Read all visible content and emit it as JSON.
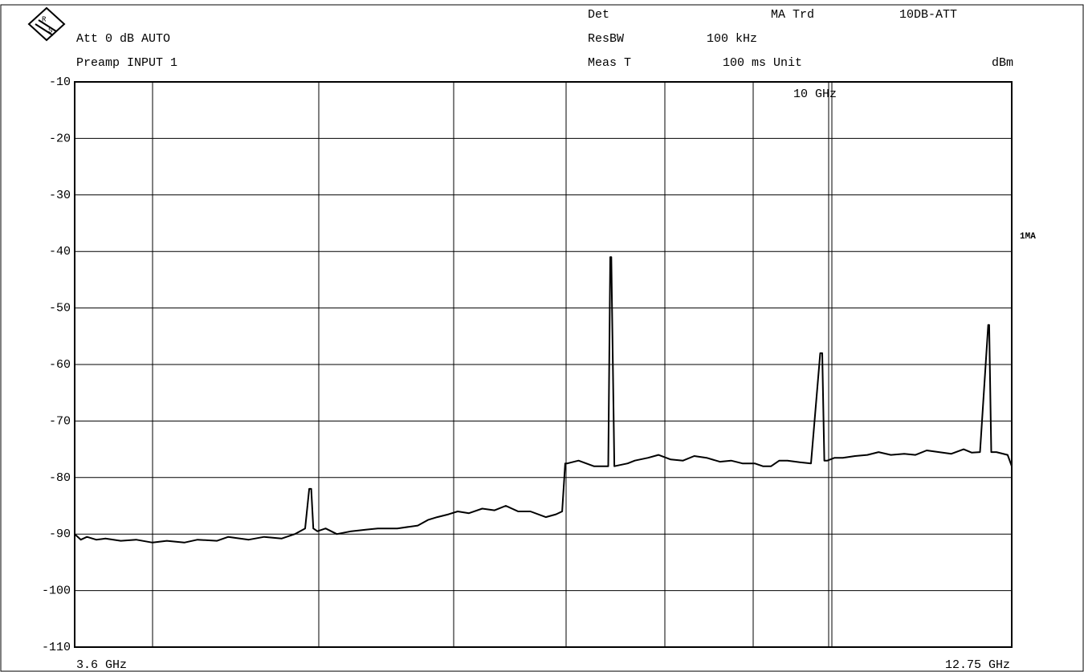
{
  "header": {
    "att": "Att 0 dB AUTO",
    "preamp": "Preamp INPUT 1",
    "det": "Det",
    "trd": "MA Trd",
    "att_mode": "10DB-ATT",
    "resbw_label": "ResBW",
    "resbw": "100 kHz",
    "meas_label": "Meas T",
    "meas": "100 ms Unit",
    "unit": "dBm"
  },
  "chart_data": {
    "type": "line",
    "xlim": [
      3.6,
      12.75
    ],
    "xticks": [
      {
        "value": 3.6,
        "label": "3.6 GHz"
      },
      {
        "value": 12.75,
        "label": "12.75 GHz"
      }
    ],
    "ylim": [
      -110,
      -10
    ],
    "yticks": [
      -10,
      -20,
      -30,
      -40,
      -50,
      -60,
      -70,
      -80,
      -90,
      -100,
      -110
    ],
    "grid": true,
    "marker_label": "10 GHz",
    "trace_label": "1MA",
    "series": [
      {
        "name": "1MA",
        "color": "#000000",
        "x": [
          3.6,
          3.66,
          3.72,
          3.81,
          3.9,
          4.05,
          4.2,
          4.36,
          4.5,
          4.67,
          4.8,
          4.99,
          5.1,
          5.3,
          5.45,
          5.62,
          5.75,
          5.85,
          5.89,
          5.91,
          5.93,
          5.97,
          6.05,
          6.16,
          6.3,
          6.45,
          6.56,
          6.75,
          6.95,
          7.05,
          7.14,
          7.25,
          7.34,
          7.45,
          7.58,
          7.7,
          7.81,
          7.93,
          8.05,
          8.2,
          8.3,
          8.36,
          8.39,
          8.41,
          8.52,
          8.67,
          8.81,
          8.83,
          8.84,
          8.87,
          9.0,
          9.07,
          9.2,
          9.3,
          9.42,
          9.54,
          9.65,
          9.77,
          9.9,
          10.01,
          10.12,
          10.24,
          10.32,
          10.4,
          10.48,
          10.56,
          10.68,
          10.79,
          10.88,
          10.9,
          10.92,
          10.95,
          11.02,
          11.1,
          11.22,
          11.34,
          11.45,
          11.57,
          11.7,
          11.81,
          11.92,
          12.04,
          12.16,
          12.28,
          12.36,
          12.44,
          12.52,
          12.53,
          12.55,
          12.6,
          12.71,
          12.75
        ],
        "values": [
          -90,
          -91,
          -90.5,
          -91,
          -90.8,
          -91.2,
          -91,
          -91.5,
          -91.2,
          -91.5,
          -91,
          -91.2,
          -90.5,
          -91,
          -90.5,
          -90.8,
          -90,
          -89,
          -82,
          -82,
          -89,
          -89.5,
          -89,
          -90,
          -89.5,
          -89.2,
          -89,
          -89,
          -88.5,
          -87.5,
          -87,
          -86.5,
          -86,
          -86.3,
          -85.5,
          -85.8,
          -85,
          -86,
          -86,
          -87,
          -86.5,
          -86,
          -77.5,
          -77.5,
          -77,
          -78,
          -78,
          -41,
          -41,
          -78,
          -77.5,
          -77,
          -76.5,
          -76,
          -76.8,
          -77,
          -76.2,
          -76.5,
          -77.2,
          -77,
          -77.5,
          -77.5,
          -78,
          -78,
          -77,
          -77,
          -77.3,
          -77.5,
          -58,
          -58,
          -77,
          -77,
          -76.5,
          -76.5,
          -76.2,
          -76,
          -75.5,
          -76,
          -75.8,
          -76,
          -75.2,
          -75.5,
          -75.8,
          -75,
          -75.6,
          -75.5,
          -53,
          -53,
          -75.5,
          -75.5,
          -76,
          -78
        ]
      }
    ]
  }
}
